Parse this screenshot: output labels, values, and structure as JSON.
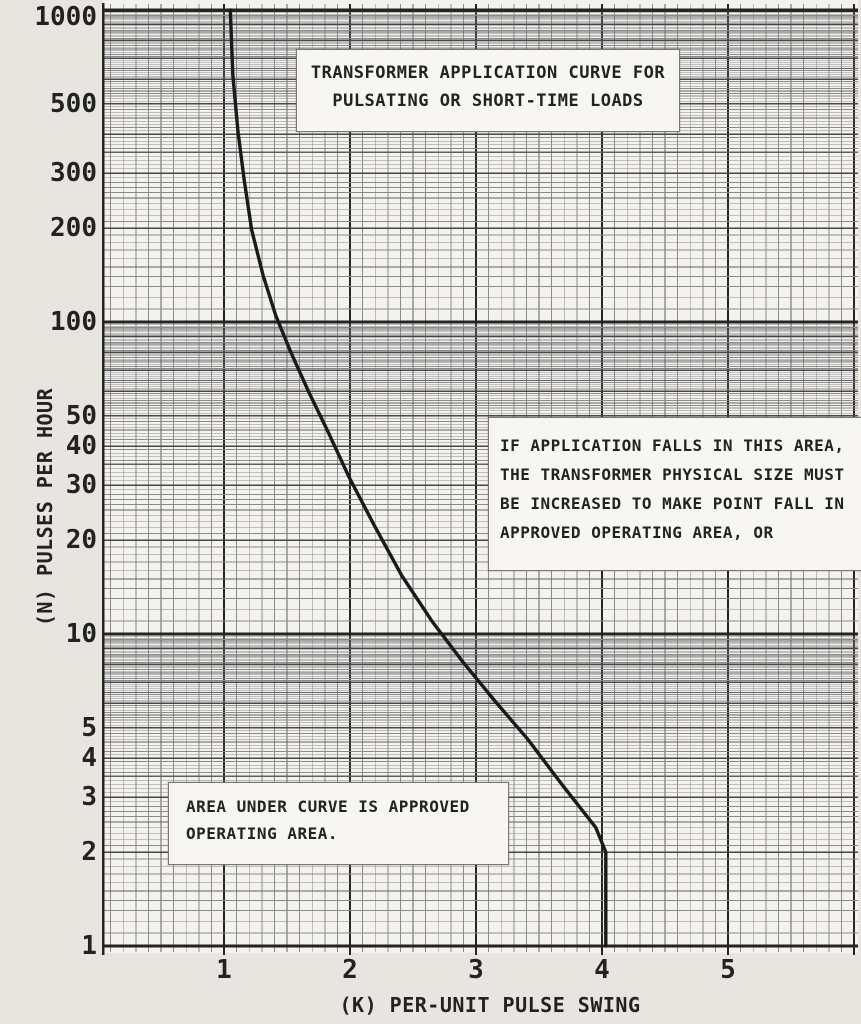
{
  "chart_data": {
    "type": "line",
    "title": "TRANSFORMER APPLICATION CURVE FOR PULSATING OR SHORT-TIME LOADS",
    "xlabel": "(K) PER-UNIT PULSE SWING",
    "ylabel": "(N) PULSES PER HOUR",
    "x_scale": "linear",
    "y_scale": "log",
    "xlim": [
      0,
      6
    ],
    "ylim": [
      1,
      1000
    ],
    "x_ticks": [
      1,
      2,
      3,
      4,
      5
    ],
    "y_ticks": [
      1000,
      500,
      300,
      200,
      100,
      50,
      40,
      30,
      20,
      10,
      5,
      4,
      3,
      2,
      1
    ],
    "grid": "semi-log graph paper, fine subdivisions on both axes",
    "series": [
      {
        "name": "transformer-application-limit-curve",
        "points": [
          [
            1.05,
            1000
          ],
          [
            1.07,
            620
          ],
          [
            1.11,
            410
          ],
          [
            1.16,
            285
          ],
          [
            1.22,
            197
          ],
          [
            1.31,
            141
          ],
          [
            1.41,
            105
          ],
          [
            1.53,
            80
          ],
          [
            1.67,
            60
          ],
          [
            1.82,
            45
          ],
          [
            1.99,
            32
          ],
          [
            2.19,
            22.4
          ],
          [
            2.41,
            15.4
          ],
          [
            2.65,
            11.0
          ],
          [
            2.9,
            8.1
          ],
          [
            3.15,
            6.1
          ],
          [
            3.41,
            4.6
          ],
          [
            3.68,
            3.3
          ],
          [
            3.95,
            2.4
          ],
          [
            4.03,
            2.0
          ],
          [
            4.03,
            1.0
          ]
        ]
      }
    ],
    "annotations": [
      "IF APPLICATION FALLS IN THIS AREA, THE TRANSFORMER PHYSICAL SIZE MUST BE INCREASED TO MAKE POINT FALL IN APPROVED OPERATING AREA, OR",
      "AREA UNDER CURVE IS APPROVED OPERATING AREA."
    ]
  },
  "axes": {
    "x": {
      "label": "(K) PER-UNIT PULSE SWING"
    },
    "y": {
      "label": "(N) PULSES PER HOUR"
    }
  },
  "boxes": {
    "title_box": {
      "lines": [
        "TRANSFORMER APPLICATION CURVE FOR",
        "PULSATING OR SHORT-TIME LOADS"
      ]
    },
    "warning_box": {
      "lines": [
        "IF APPLICATION FALLS IN THIS AREA,",
        "THE TRANSFORMER PHYSICAL SIZE MUST",
        "BE INCREASED TO MAKE POINT FALL IN",
        "APPROVED OPERATING AREA, OR"
      ]
    },
    "approved_box": {
      "lines": [
        "AREA UNDER CURVE IS APPROVED",
        "OPERATING AREA."
      ]
    }
  },
  "colors": {
    "paper": "#e8e5e0",
    "plot_background": "#f4f2ee",
    "grid_minor": "#8a8a8a",
    "grid_half": "#606060",
    "grid_integer": "#474747",
    "grid_decade": "#242424",
    "curve": "#1a1a1a",
    "text": "#222222"
  }
}
